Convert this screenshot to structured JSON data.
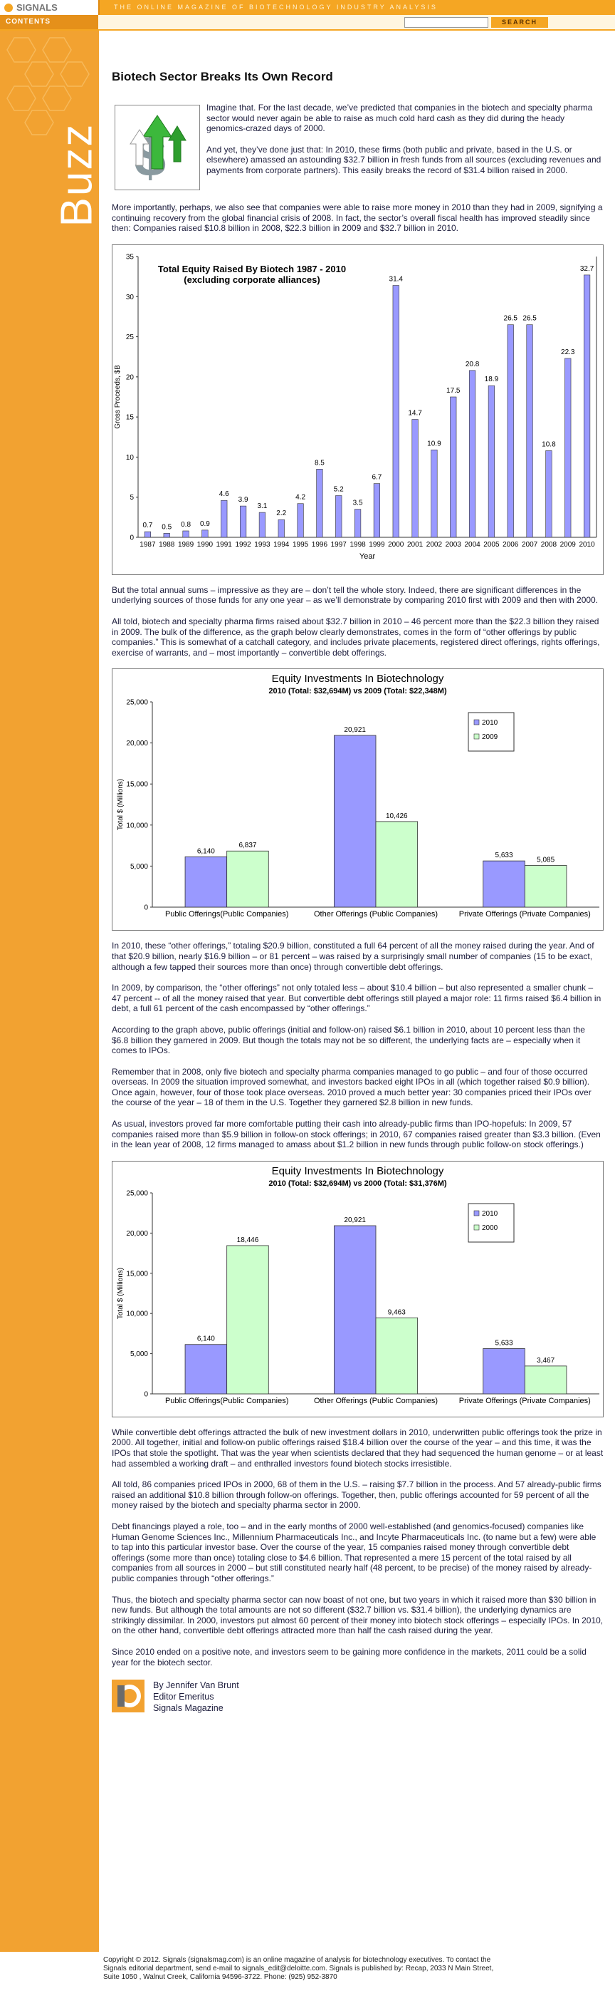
{
  "header": {
    "logo": "SIGNALS",
    "tagline": "THE ONLINE MAGAZINE OF BIOTECHNOLOGY INDUSTRY ANALYSIS",
    "contents": "CONTENTS",
    "search": "SEARCH"
  },
  "sidebar": {
    "section": "Buzz"
  },
  "article": {
    "title": "Biotech Sector Breaks Its Own Record",
    "intro": [
      "Imagine that. For the last decade, we’ve predicted that companies in the biotech and specialty pharma sector would never again be able to raise as much cold hard cash as they did during the heady genomics-crazed days of 2000.",
      "And yet, they’ve done just that: In 2010, these firms (both public and private, based in the U.S. or elsewhere) amassed an astounding $32.7 billion in fresh funds from all sources (excluding revenues and payments from corporate partners). This easily breaks the record of $31.4 billion raised in 2000."
    ],
    "body_1": [
      "More importantly, perhaps, we also see that companies were able to raise more money in 2010 than they had in 2009, signifying a continuing recovery from the global financial crisis of 2008. In fact, the sector’s overall fiscal health has improved steadily since then: Companies raised $10.8 billion in 2008, $22.3 billion in 2009 and $32.7 billion in 2010."
    ],
    "body_2": [
      "But the total annual sums – impressive as they are – don’t tell the whole story. Indeed, there are significant differences in the underlying sources of those funds for any one year – as we’ll demonstrate by comparing 2010 first with 2009 and then with 2000.",
      "All told, biotech and specialty pharma firms raised about $32.7 billion in 2010 – 46 percent more than the $22.3 billion they raised in 2009. The bulk of the difference, as the graph below clearly demonstrates, comes in the form of “other offerings by public companies.” This is somewhat of a catchall category, and includes private placements, registered direct offerings, rights offerings, exercise of warrants, and – most importantly – convertible debt offerings."
    ],
    "body_3": [
      "In 2010, these “other offerings,” totaling $20.9 billion, constituted a full 64 percent of all the money raised during the year. And of that $20.9 billion, nearly $16.9 billion – or 81 percent – was raised by a surprisingly small number of companies (15 to be exact, although a few tapped their sources more than once) through convertible debt offerings.",
      "In 2009, by comparison, the “other offerings” not only totaled less – about $10.4 billion – but also represented a smaller chunk – 47 percent -- of all the money raised that year. But convertible debt offerings still played a major role: 11 firms raised $6.4 billion in debt, a full 61 percent of the cash encompassed by “other offerings.”",
      "According to the graph above, public offerings (initial and follow-on) raised $6.1 billion in 2010, about 10 percent less than the $6.8 billion they garnered in 2009. But though the totals may not be so different, the underlying facts are – especially when it comes to IPOs.",
      "Remember that in 2008, only five biotech and specialty pharma companies managed to go public – and four of those occurred overseas. In 2009 the situation improved somewhat, and investors backed eight IPOs in all (which together raised $0.9 billion). Once again, however, four of those took place overseas. 2010 proved a much better year: 30 companies priced their IPOs over the course of the year – 18 of them in the U.S. Together they garnered $2.8 billion in new funds.",
      "As usual, investors proved far more comfortable putting their cash into already-public firms than IPO-hopefuls: In 2009, 57 companies raised more than $5.9 billion in follow-on stock offerings; in 2010, 67 companies raised greater than $3.3 billion. (Even in the lean year of 2008, 12 firms managed to amass about $1.2 billion in new funds through public follow-on stock offerings.)"
    ],
    "body_4": [
      "While convertible debt offerings attracted the bulk of new investment dollars in 2010, underwritten public offerings took the prize in 2000. All together, initial and follow-on public offerings raised $18.4 billion over the course of the year – and this time, it was the IPOs that stole the spotlight. That was the year when scientists declared that they had sequenced the human genome – or at least had assembled a working draft – and enthralled investors found biotech stocks irresistible.",
      "All told, 86 companies priced IPOs in 2000, 68 of them in the U.S. – raising $7.7 billion in the process. And 57 already-public firms raised an additional $10.8 billion through follow-on offerings. Together, then, public offerings accounted for 59 percent of all the money raised by the biotech and specialty pharma sector in 2000.",
      "Debt financings played a role, too – and in the early months of 2000 well-established (and genomics-focused) companies like Human Genome Sciences Inc., Millennium Pharmaceuticals Inc., and Incyte Pharmaceuticals Inc. (to name but a few) were able to tap into this particular investor base. Over the course of the year, 15 companies raised money through convertible debt offerings (some more than once) totaling close to $4.6 billion. That represented a mere 15 percent of the total raised by all companies from all sources in 2000 – but still constituted nearly half (48 percent, to be precise) of the money raised by already-public companies through “other offerings.”",
      "Thus, the biotech and specialty pharma sector can now boast of not one, but two years in which it raised more than $30 billion in new funds. But although the total amounts are not so different ($32.7 billion vs. $31.4 billion), the underlying dynamics are strikingly dissimilar. In 2000, investors put almost 60 percent of their money into biotech stock offerings – especially IPOs. In 2010, on the other hand, convertible debt offerings attracted more than half the cash raised during the year.",
      "Since 2010 ended on a positive note, and investors seem to be gaining more confidence in the markets, 2011 could be a solid year for the biotech sector."
    ],
    "signature": [
      "By Jennifer Van Brunt",
      "Editor Emeritus",
      "Signals Magazine"
    ]
  },
  "footer": "Copyright © 2012. Signals (signalsmag.com) is an online magazine of analysis for biotechnology executives. To contact the Signals editorial department, send e-mail to signals_edit@deloitte.com. Signals is published by: Recap, 2033 N Main Street, Suite 1050 , Walnut Creek, California 94596-3722. Phone: (925) 952-3870",
  "chart_data": [
    {
      "type": "bar",
      "title": "Total Equity Raised By Biotech 1987 - 2010",
      "subtitle": "(excluding corporate alliances)",
      "x_label": "Year",
      "y_label": "Gross Proceeds, $B",
      "categories": [
        "1987",
        "1988",
        "1989",
        "1990",
        "1991",
        "1992",
        "1993",
        "1994",
        "1995",
        "1996",
        "1997",
        "1998",
        "1999",
        "2000",
        "2001",
        "2002",
        "2003",
        "2004",
        "2005",
        "2006",
        "2007",
        "2008",
        "2009",
        "2010"
      ],
      "values": [
        0.7,
        0.5,
        0.8,
        0.9,
        4.6,
        3.9,
        3.1,
        2.2,
        4.2,
        8.5,
        5.2,
        3.5,
        6.7,
        31.4,
        14.7,
        10.9,
        17.5,
        20.8,
        18.9,
        26.5,
        26.5,
        10.8,
        22.3,
        32.7
      ],
      "color": "#9999ff",
      "ylim": [
        0,
        35
      ],
      "yticks": [
        0,
        5,
        10,
        15,
        20,
        25,
        30,
        35
      ]
    },
    {
      "type": "bar",
      "title": "Equity Investments In Biotechnology",
      "subtitle": "2010 (Total: $32,694M) vs 2009 (Total: $22,348M)",
      "y_label": "Total $ (Millions)",
      "categories": [
        "Public Offerings(Public Companies)",
        "Other Offerings (Public Companies)",
        "Private Offerings (Private Companies)"
      ],
      "series": [
        {
          "name": "2010",
          "color": "#9999ff",
          "values": [
            6140,
            20921,
            5633
          ],
          "value_labels": [
            "6,140",
            "20,921",
            "5,633"
          ]
        },
        {
          "name": "2009",
          "color": "#ccffcc",
          "values": [
            6837,
            10426,
            5085
          ],
          "value_labels": [
            "6,837",
            "10,426",
            "5,085"
          ]
        }
      ],
      "ylim": [
        0,
        25000
      ],
      "yticks": [
        0,
        {
          "value": 5000,
          "label": "5,000"
        },
        {
          "value": 10000,
          "label": "10,000"
        },
        {
          "value": 15000,
          "label": "15,000"
        },
        {
          "value": 20000,
          "label": "20,000"
        },
        {
          "value": 25000,
          "label": "25,000"
        }
      ],
      "legend": "upper right"
    },
    {
      "type": "bar",
      "title": "Equity Investments In Biotechnology",
      "subtitle": "2010 (Total: $32,694M) vs 2000 (Total: $31,376M)",
      "y_label": "Total $ (Millions)",
      "categories": [
        "Public Offerings(Public Companies)",
        "Other Offerings (Public Companies)",
        "Private Offerings (Private Companies)"
      ],
      "series": [
        {
          "name": "2010",
          "color": "#9999ff",
          "values": [
            6140,
            20921,
            5633
          ],
          "value_labels": [
            "6,140",
            "20,921",
            "5,633"
          ]
        },
        {
          "name": "2000",
          "color": "#ccffcc",
          "values": [
            18446,
            9463,
            3467
          ],
          "value_labels": [
            "18,446",
            "9,463",
            "3,467"
          ]
        }
      ],
      "ylim": [
        0,
        25000
      ],
      "yticks": [
        0,
        {
          "value": 5000,
          "label": "5,000"
        },
        {
          "value": 10000,
          "label": "10,000"
        },
        {
          "value": 15000,
          "label": "15,000"
        },
        {
          "value": 20000,
          "label": "20,000"
        },
        {
          "value": 25000,
          "label": "25,000"
        }
      ],
      "legend": "upper right"
    }
  ]
}
